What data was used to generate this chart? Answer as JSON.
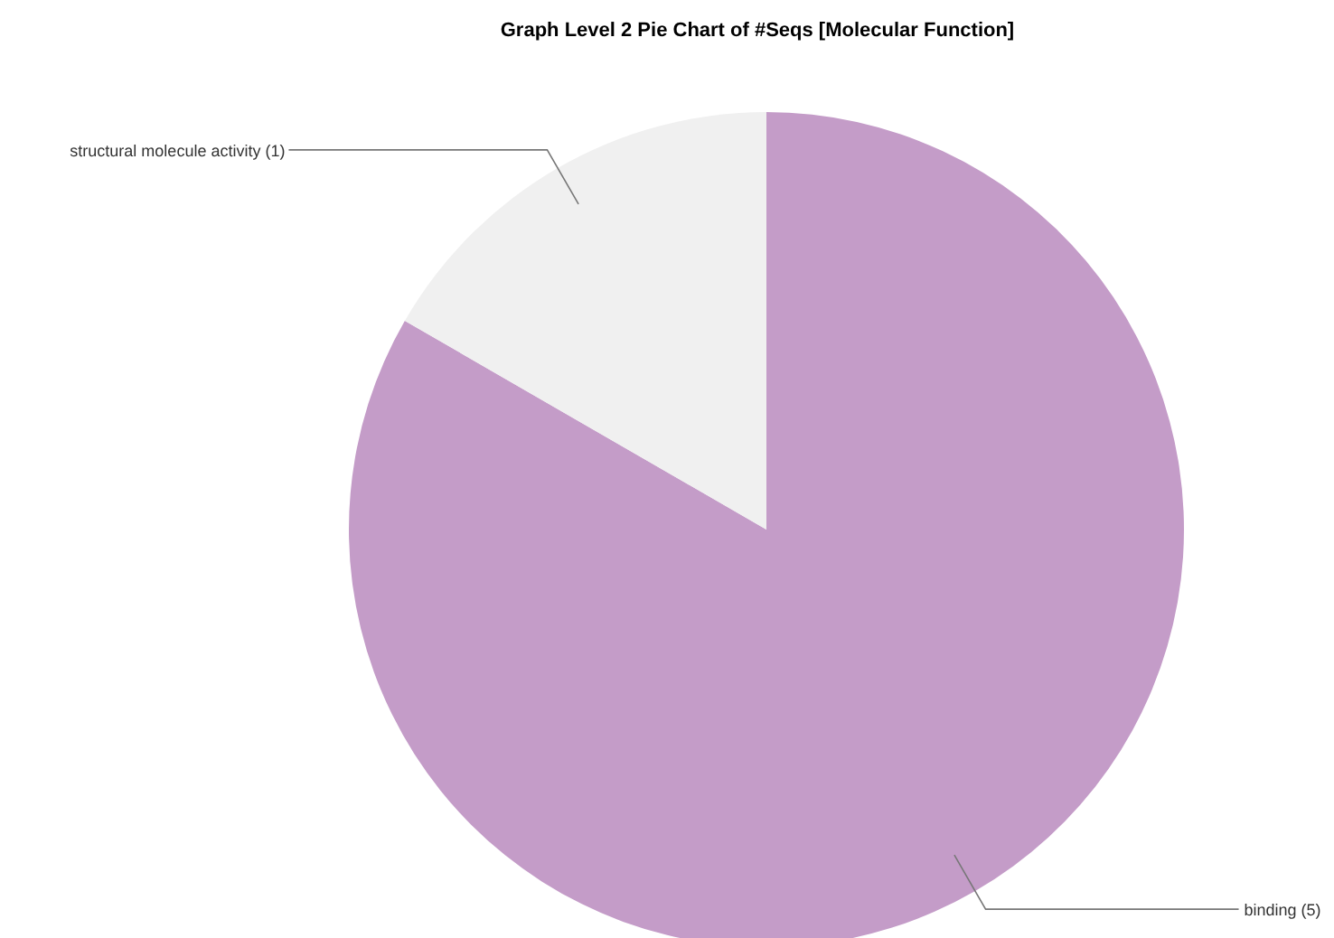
{
  "chart_data": {
    "type": "pie",
    "title": "Graph Level 2 Pie Chart of #Seqs [Molecular Function]",
    "categories": [
      "binding (5)",
      "structural molecule activity (1)"
    ],
    "values": [
      5,
      1
    ],
    "colors": [
      "#c49cc8",
      "#f0f0f0"
    ]
  }
}
